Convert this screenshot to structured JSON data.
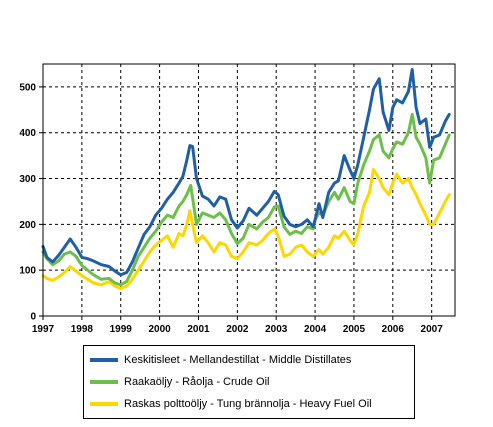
{
  "chart_data": {
    "type": "line",
    "title": "",
    "xlabel": "",
    "ylabel": "",
    "xlim": [
      1997.0,
      2007.6
    ],
    "ylim": [
      0,
      550
    ],
    "yticks": [
      0,
      100,
      200,
      300,
      400,
      500
    ],
    "xtick_labels": [
      "1997",
      "1998",
      "1999",
      "2000",
      "2001",
      "2002",
      "2003",
      "2004",
      "2005",
      "2006",
      "2007"
    ],
    "grid": "horizontal dashed",
    "legend_position": "bottom",
    "series": [
      {
        "name": "Keskitisleet - Mellandestillat - Middle Distillates",
        "color": "#1f5fa8",
        "points": [
          [
            1997.0,
            152
          ],
          [
            1997.1,
            128
          ],
          [
            1997.25,
            118
          ],
          [
            1997.4,
            132
          ],
          [
            1997.55,
            150
          ],
          [
            1997.7,
            168
          ],
          [
            1997.85,
            150
          ],
          [
            1998.0,
            128
          ],
          [
            1998.15,
            125
          ],
          [
            1998.3,
            120
          ],
          [
            1998.5,
            112
          ],
          [
            1998.7,
            108
          ],
          [
            1998.85,
            98
          ],
          [
            1999.0,
            90
          ],
          [
            1999.15,
            95
          ],
          [
            1999.3,
            118
          ],
          [
            1999.45,
            148
          ],
          [
            1999.6,
            178
          ],
          [
            1999.75,
            195
          ],
          [
            1999.9,
            220
          ],
          [
            2000.05,
            235
          ],
          [
            2000.2,
            255
          ],
          [
            2000.35,
            270
          ],
          [
            2000.5,
            290
          ],
          [
            2000.6,
            305
          ],
          [
            2000.7,
            340
          ],
          [
            2000.78,
            372
          ],
          [
            2000.85,
            370
          ],
          [
            2000.95,
            300
          ],
          [
            2001.1,
            262
          ],
          [
            2001.25,
            255
          ],
          [
            2001.4,
            240
          ],
          [
            2001.55,
            260
          ],
          [
            2001.7,
            255
          ],
          [
            2001.85,
            210
          ],
          [
            2002.0,
            192
          ],
          [
            2002.15,
            208
          ],
          [
            2002.3,
            235
          ],
          [
            2002.5,
            220
          ],
          [
            2002.65,
            235
          ],
          [
            2002.8,
            250
          ],
          [
            2002.95,
            272
          ],
          [
            2003.05,
            265
          ],
          [
            2003.2,
            218
          ],
          [
            2003.35,
            200
          ],
          [
            2003.5,
            195
          ],
          [
            2003.65,
            200
          ],
          [
            2003.8,
            210
          ],
          [
            2003.95,
            195
          ],
          [
            2004.0,
            210
          ],
          [
            2004.1,
            245
          ],
          [
            2004.2,
            215
          ],
          [
            2004.35,
            270
          ],
          [
            2004.5,
            290
          ],
          [
            2004.6,
            295
          ],
          [
            2004.75,
            350
          ],
          [
            2004.9,
            318
          ],
          [
            2005.0,
            300
          ],
          [
            2005.1,
            330
          ],
          [
            2005.25,
            390
          ],
          [
            2005.4,
            450
          ],
          [
            2005.5,
            495
          ],
          [
            2005.65,
            518
          ],
          [
            2005.75,
            445
          ],
          [
            2005.9,
            405
          ],
          [
            2006.0,
            455
          ],
          [
            2006.1,
            472
          ],
          [
            2006.25,
            465
          ],
          [
            2006.4,
            490
          ],
          [
            2006.5,
            538
          ],
          [
            2006.6,
            455
          ],
          [
            2006.7,
            420
          ],
          [
            2006.85,
            430
          ],
          [
            2006.95,
            368
          ],
          [
            2007.05,
            390
          ],
          [
            2007.2,
            395
          ],
          [
            2007.35,
            425
          ],
          [
            2007.45,
            440
          ]
        ]
      },
      {
        "name": "Raakaöljy - Råolja - Crude Oil",
        "color": "#6cc04a",
        "points": [
          [
            1997.0,
            140
          ],
          [
            1997.1,
            125
          ],
          [
            1997.25,
            112
          ],
          [
            1997.4,
            120
          ],
          [
            1997.55,
            135
          ],
          [
            1997.7,
            140
          ],
          [
            1997.85,
            130
          ],
          [
            1998.0,
            110
          ],
          [
            1998.15,
            100
          ],
          [
            1998.3,
            90
          ],
          [
            1998.5,
            80
          ],
          [
            1998.7,
            82
          ],
          [
            1998.85,
            72
          ],
          [
            1999.0,
            68
          ],
          [
            1999.15,
            75
          ],
          [
            1999.3,
            100
          ],
          [
            1999.45,
            130
          ],
          [
            1999.6,
            150
          ],
          [
            1999.75,
            170
          ],
          [
            1999.9,
            185
          ],
          [
            2000.05,
            205
          ],
          [
            2000.2,
            220
          ],
          [
            2000.35,
            215
          ],
          [
            2000.5,
            240
          ],
          [
            2000.6,
            250
          ],
          [
            2000.7,
            265
          ],
          [
            2000.8,
            285
          ],
          [
            2000.88,
            240
          ],
          [
            2000.95,
            200
          ],
          [
            2001.1,
            225
          ],
          [
            2001.25,
            220
          ],
          [
            2001.4,
            215
          ],
          [
            2001.55,
            225
          ],
          [
            2001.7,
            210
          ],
          [
            2001.85,
            180
          ],
          [
            2002.0,
            158
          ],
          [
            2002.15,
            170
          ],
          [
            2002.3,
            200
          ],
          [
            2002.5,
            190
          ],
          [
            2002.65,
            205
          ],
          [
            2002.8,
            215
          ],
          [
            2002.95,
            238
          ],
          [
            2003.05,
            240
          ],
          [
            2003.2,
            195
          ],
          [
            2003.35,
            178
          ],
          [
            2003.5,
            185
          ],
          [
            2003.65,
            180
          ],
          [
            2003.8,
            195
          ],
          [
            2003.95,
            190
          ],
          [
            2004.0,
            210
          ],
          [
            2004.1,
            225
          ],
          [
            2004.2,
            220
          ],
          [
            2004.35,
            250
          ],
          [
            2004.5,
            270
          ],
          [
            2004.6,
            255
          ],
          [
            2004.75,
            280
          ],
          [
            2004.9,
            250
          ],
          [
            2005.0,
            245
          ],
          [
            2005.1,
            290
          ],
          [
            2005.25,
            330
          ],
          [
            2005.4,
            360
          ],
          [
            2005.5,
            385
          ],
          [
            2005.65,
            395
          ],
          [
            2005.75,
            360
          ],
          [
            2005.9,
            345
          ],
          [
            2006.0,
            365
          ],
          [
            2006.1,
            380
          ],
          [
            2006.25,
            375
          ],
          [
            2006.4,
            400
          ],
          [
            2006.5,
            440
          ],
          [
            2006.6,
            390
          ],
          [
            2006.7,
            375
          ],
          [
            2006.85,
            345
          ],
          [
            2006.95,
            290
          ],
          [
            2007.05,
            340
          ],
          [
            2007.2,
            345
          ],
          [
            2007.35,
            375
          ],
          [
            2007.45,
            395
          ]
        ]
      },
      {
        "name": "Raskas polttoöljy - Tung brännolja - Heavy Fuel Oil",
        "color": "#ffd700",
        "points": [
          [
            1997.0,
            88
          ],
          [
            1997.1,
            82
          ],
          [
            1997.25,
            78
          ],
          [
            1997.4,
            85
          ],
          [
            1997.55,
            95
          ],
          [
            1997.7,
            108
          ],
          [
            1997.85,
            98
          ],
          [
            1998.0,
            88
          ],
          [
            1998.15,
            80
          ],
          [
            1998.3,
            72
          ],
          [
            1998.5,
            68
          ],
          [
            1998.7,
            75
          ],
          [
            1998.85,
            65
          ],
          [
            1999.0,
            60
          ],
          [
            1999.15,
            65
          ],
          [
            1999.3,
            80
          ],
          [
            1999.45,
            100
          ],
          [
            1999.6,
            120
          ],
          [
            1999.75,
            140
          ],
          [
            1999.9,
            155
          ],
          [
            2000.05,
            165
          ],
          [
            2000.2,
            175
          ],
          [
            2000.35,
            150
          ],
          [
            2000.5,
            180
          ],
          [
            2000.6,
            175
          ],
          [
            2000.7,
            200
          ],
          [
            2000.78,
            230
          ],
          [
            2000.85,
            200
          ],
          [
            2000.95,
            160
          ],
          [
            2001.1,
            175
          ],
          [
            2001.25,
            160
          ],
          [
            2001.4,
            140
          ],
          [
            2001.55,
            160
          ],
          [
            2001.7,
            155
          ],
          [
            2001.85,
            130
          ],
          [
            2002.0,
            125
          ],
          [
            2002.15,
            140
          ],
          [
            2002.3,
            160
          ],
          [
            2002.5,
            155
          ],
          [
            2002.65,
            165
          ],
          [
            2002.8,
            180
          ],
          [
            2002.95,
            190
          ],
          [
            2003.05,
            175
          ],
          [
            2003.2,
            130
          ],
          [
            2003.35,
            135
          ],
          [
            2003.5,
            150
          ],
          [
            2003.65,
            155
          ],
          [
            2003.8,
            140
          ],
          [
            2003.95,
            130
          ],
          [
            2004.0,
            135
          ],
          [
            2004.1,
            145
          ],
          [
            2004.2,
            135
          ],
          [
            2004.35,
            150
          ],
          [
            2004.5,
            175
          ],
          [
            2004.6,
            170
          ],
          [
            2004.75,
            185
          ],
          [
            2004.9,
            165
          ],
          [
            2005.0,
            155
          ],
          [
            2005.1,
            180
          ],
          [
            2005.25,
            240
          ],
          [
            2005.4,
            270
          ],
          [
            2005.5,
            320
          ],
          [
            2005.65,
            300
          ],
          [
            2005.75,
            280
          ],
          [
            2005.9,
            265
          ],
          [
            2006.0,
            290
          ],
          [
            2006.1,
            310
          ],
          [
            2006.25,
            290
          ],
          [
            2006.4,
            300
          ],
          [
            2006.5,
            280
          ],
          [
            2006.6,
            265
          ],
          [
            2006.7,
            245
          ],
          [
            2006.85,
            220
          ],
          [
            2006.95,
            200
          ],
          [
            2007.05,
            200
          ],
          [
            2007.2,
            225
          ],
          [
            2007.35,
            250
          ],
          [
            2007.45,
            265
          ]
        ]
      }
    ]
  }
}
